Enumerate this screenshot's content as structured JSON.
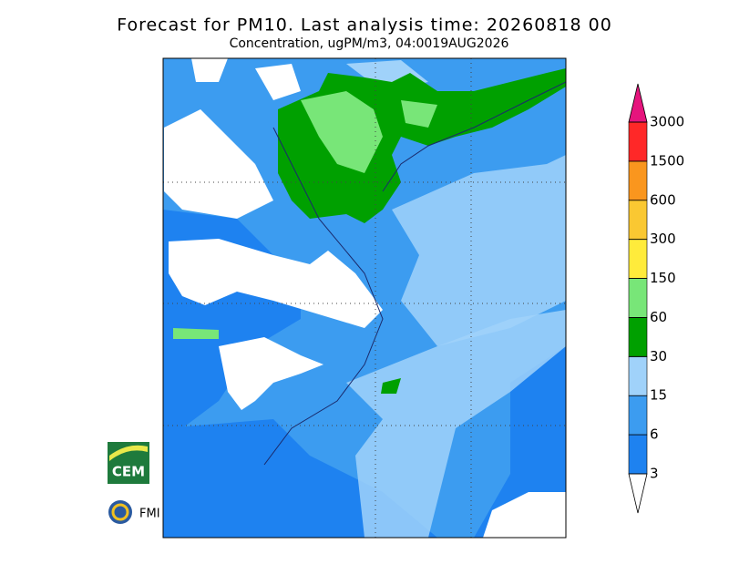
{
  "header": {
    "title": "Forecast for PM10. Last analysis time: 20260818 00",
    "subtitle": "Concentration, ugPM/m3, 04:0019AUG2026"
  },
  "colorbar": {
    "levels": [
      3,
      6,
      15,
      30,
      60,
      150,
      300,
      600,
      1500,
      3000
    ],
    "colors": [
      "#1e82f0",
      "#3c9cf0",
      "#a0d2fa",
      "#00a000",
      "#78e678",
      "#ffeb3b",
      "#fac832",
      "#fa961e",
      "#ff2828"
    ],
    "under_color": "#ffffff",
    "over_color": "#e6147d"
  },
  "logos": {
    "cem": "CEM",
    "fmi": "FMI"
  }
}
